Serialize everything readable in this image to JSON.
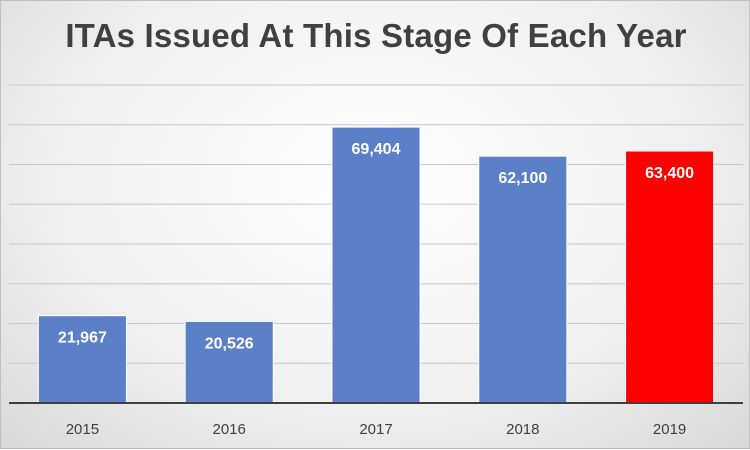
{
  "chart_data": {
    "type": "bar",
    "title": "ITAs Issued At This Stage Of Each Year",
    "categories": [
      "2015",
      "2016",
      "2017",
      "2018",
      "2019"
    ],
    "values": [
      21967,
      20526,
      69404,
      62100,
      63400
    ],
    "data_labels": [
      "21,967",
      "20,526",
      "69,404",
      "62,100",
      "63,400"
    ],
    "bar_colors": [
      "#5b80c8",
      "#5b80c8",
      "#5b80c8",
      "#5b80c8",
      "#ff0000"
    ],
    "ylim": [
      0,
      80000
    ],
    "grid": true,
    "legend": "none",
    "xlabel": "",
    "ylabel": ""
  }
}
